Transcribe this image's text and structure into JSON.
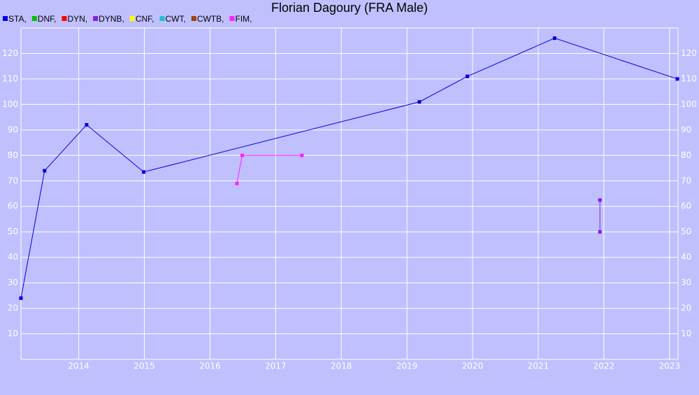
{
  "chart_data": {
    "type": "line",
    "title": "Florian Dagoury (FRA Male)",
    "xlim": [
      2013.12,
      2023.13
    ],
    "xticks": [
      2014,
      2015,
      2016,
      2017,
      2018,
      2019,
      2020,
      2021,
      2022,
      2023
    ],
    "ylim": [
      0,
      130
    ],
    "yticks": [
      10,
      20,
      30,
      40,
      50,
      60,
      70,
      80,
      90,
      100,
      110,
      120
    ],
    "grid": true,
    "series": [
      {
        "name": "STA,",
        "color": "#0000e0",
        "x": [
          2013.12,
          2013.48,
          2014.12,
          2014.99,
          2019.19,
          2019.92,
          2021.25,
          2023.12
        ],
        "values": [
          24,
          74,
          92,
          73.5,
          101,
          111,
          126,
          110
        ]
      },
      {
        "name": "DNF,",
        "color": "#00c000",
        "x": [],
        "values": []
      },
      {
        "name": "DYN,",
        "color": "#ff0000",
        "x": [],
        "values": []
      },
      {
        "name": "DYNB,",
        "color": "#8020e0",
        "x": [
          2021.94,
          2021.94
        ],
        "values": [
          62.5,
          50
        ]
      },
      {
        "name": "CNF,",
        "color": "#ffff00",
        "x": [],
        "values": []
      },
      {
        "name": "CWT,",
        "color": "#20c0d0",
        "x": [],
        "values": []
      },
      {
        "name": "CWTB,",
        "color": "#a04010",
        "x": [],
        "values": []
      },
      {
        "name": "FIM,",
        "color": "#ff20ff",
        "x": [
          2016.41,
          2016.49,
          2017.4
        ],
        "values": [
          69,
          80,
          80
        ]
      }
    ]
  }
}
